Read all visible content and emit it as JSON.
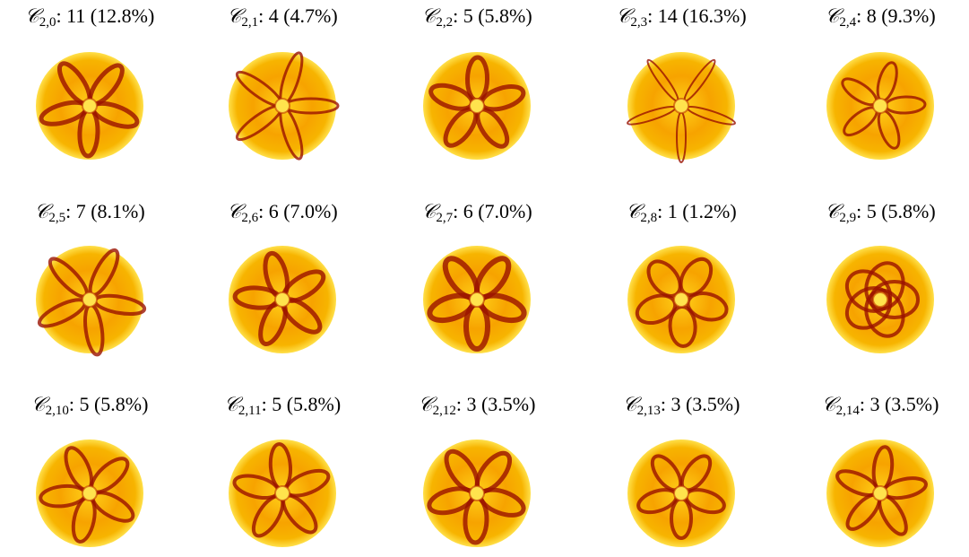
{
  "cluster_symbol": "𝒞",
  "panels": [
    {
      "subscript": "2,0",
      "caption": ": 11 (12.8%)"
    },
    {
      "subscript": "2,1",
      "caption": ": 4 (4.7%)"
    },
    {
      "subscript": "2,2",
      "caption": ": 5 (5.8%)"
    },
    {
      "subscript": "2,3",
      "caption": ": 14 (16.3%)"
    },
    {
      "subscript": "2,4",
      "caption": ": 8 (9.3%)"
    },
    {
      "subscript": "2,5",
      "caption": ": 7 (8.1%)"
    },
    {
      "subscript": "2,6",
      "caption": ": 6 (7.0%)"
    },
    {
      "subscript": "2,7",
      "caption": ": 6 (7.0%)"
    },
    {
      "subscript": "2,8",
      "caption": ": 1 (1.2%)"
    },
    {
      "subscript": "2,9",
      "caption": ": 5 (5.8%)"
    },
    {
      "subscript": "2,10",
      "caption": ": 5 (5.8%)"
    },
    {
      "subscript": "2,11",
      "caption": ": 5 (5.8%)"
    },
    {
      "subscript": "2,12",
      "caption": ": 3 (3.5%)"
    },
    {
      "subscript": "2,13",
      "caption": ": 3 (3.5%)"
    },
    {
      "subscript": "2,14",
      "caption": ": 3 (3.5%)"
    }
  ]
}
